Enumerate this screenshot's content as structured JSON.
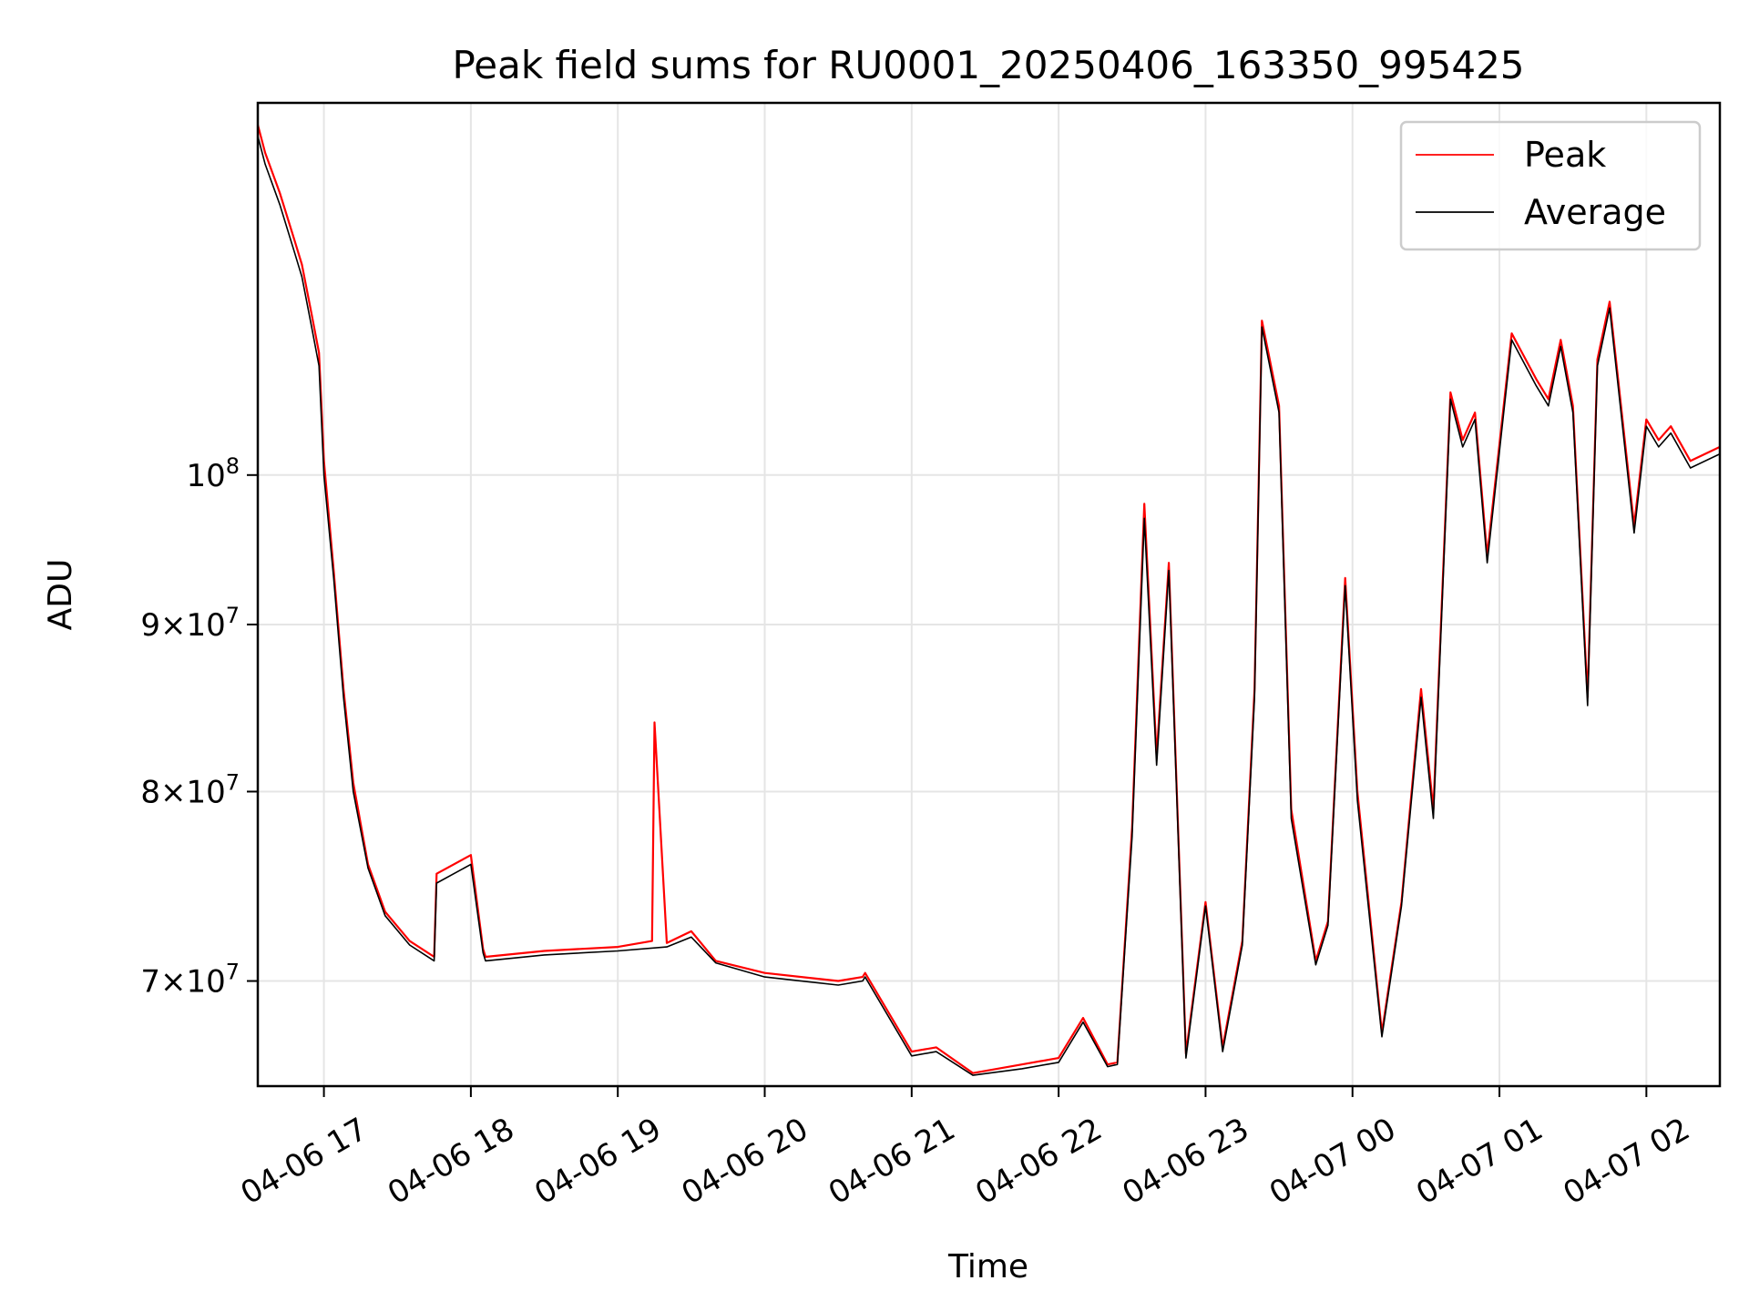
{
  "chart_data": {
    "type": "line",
    "title": "Peak field sums for RU0001_20250406_163350_995425",
    "xlabel": "Time",
    "ylabel": "ADU",
    "y_scale": "log",
    "xlim": [
      "2025-04-06 16:33",
      "2025-04-07 02:30"
    ],
    "ylim": [
      65000000,
      130000000
    ],
    "grid": true,
    "legend_position": "top-right",
    "x_ticks": [
      "04-06 17",
      "04-06 18",
      "04-06 19",
      "04-06 20",
      "04-06 21",
      "04-06 22",
      "04-06 23",
      "04-07 00",
      "04-07 01",
      "04-07 02"
    ],
    "x_tick_times": [
      "2025-04-06 17:00",
      "2025-04-06 18:00",
      "2025-04-06 19:00",
      "2025-04-06 20:00",
      "2025-04-06 21:00",
      "2025-04-06 22:00",
      "2025-04-06 23:00",
      "2025-04-07 00:00",
      "2025-04-07 01:00",
      "2025-04-07 02:00"
    ],
    "y_ticks": [
      {
        "value": 70000000,
        "mantissa": "7",
        "exponent": "7"
      },
      {
        "value": 80000000,
        "mantissa": "8",
        "exponent": "7"
      },
      {
        "value": 90000000,
        "mantissa": "9",
        "exponent": "7"
      },
      {
        "value": 100000000,
        "mantissa": "",
        "exponent": "8"
      }
    ],
    "series": [
      {
        "name": "Peak",
        "color": "#ff0000",
        "x": [
          "2025-04-06 16:33",
          "2025-04-06 16:36",
          "2025-04-06 16:42",
          "2025-04-06 16:48",
          "2025-04-06 16:51",
          "2025-04-06 16:55",
          "2025-04-06 16:58",
          "2025-04-06 17:00",
          "2025-04-06 17:04",
          "2025-04-06 17:08",
          "2025-04-06 17:12",
          "2025-04-06 17:18",
          "2025-04-06 17:25",
          "2025-04-06 17:35",
          "2025-04-06 17:45",
          "2025-04-06 17:46",
          "2025-04-06 18:00",
          "2025-04-06 18:05",
          "2025-04-06 18:06",
          "2025-04-06 18:30",
          "2025-04-06 19:00",
          "2025-04-06 19:14",
          "2025-04-06 19:15",
          "2025-04-06 19:20",
          "2025-04-06 19:30",
          "2025-04-06 19:40",
          "2025-04-06 20:00",
          "2025-04-06 20:30",
          "2025-04-06 20:40",
          "2025-04-06 20:41",
          "2025-04-06 21:00",
          "2025-04-06 21:10",
          "2025-04-06 21:25",
          "2025-04-06 21:45",
          "2025-04-06 22:00",
          "2025-04-06 22:10",
          "2025-04-06 22:20",
          "2025-04-06 22:24",
          "2025-04-06 22:30",
          "2025-04-06 22:35",
          "2025-04-06 22:40",
          "2025-04-06 22:45",
          "2025-04-06 22:52",
          "2025-04-06 23:00",
          "2025-04-06 23:07",
          "2025-04-06 23:15",
          "2025-04-06 23:20",
          "2025-04-06 23:23",
          "2025-04-06 23:30",
          "2025-04-06 23:35",
          "2025-04-06 23:45",
          "2025-04-06 23:50",
          "2025-04-06 23:57",
          "2025-04-07 00:02",
          "2025-04-07 00:12",
          "2025-04-07 00:20",
          "2025-04-07 00:28",
          "2025-04-07 00:33",
          "2025-04-07 00:40",
          "2025-04-07 00:45",
          "2025-04-07 00:50",
          "2025-04-07 00:55",
          "2025-04-07 01:05",
          "2025-04-07 01:15",
          "2025-04-07 01:20",
          "2025-04-07 01:25",
          "2025-04-07 01:30",
          "2025-04-07 01:36",
          "2025-04-07 01:40",
          "2025-04-07 01:45",
          "2025-04-07 01:55",
          "2025-04-07 02:00",
          "2025-04-07 02:05",
          "2025-04-07 02:10",
          "2025-04-07 02:18",
          "2025-04-07 02:30"
        ],
        "values": [
          128000000,
          125500000,
          122000000,
          118000000,
          116000000,
          112000000,
          109000000,
          101000000,
          93500000,
          86000000,
          80500000,
          76000000,
          73500000,
          72000000,
          71200000,
          75500000,
          76500000,
          71600000,
          71200000,
          71500000,
          71700000,
          72000000,
          84000000,
          71900000,
          72500000,
          71000000,
          70400000,
          70000000,
          70200000,
          70400000,
          66600000,
          66800000,
          65600000,
          66000000,
          66300000,
          68200000,
          66000000,
          66100000,
          78000000,
          98000000,
          82000000,
          94000000,
          66500000,
          74000000,
          66800000,
          72000000,
          86000000,
          111500000,
          105000000,
          79000000,
          71000000,
          73000000,
          93000000,
          80000000,
          67500000,
          74000000,
          86000000,
          79000000,
          106000000,
          102500000,
          104500000,
          94500000,
          110500000,
          107000000,
          105500000,
          110000000,
          105000000,
          85500000,
          108500000,
          113000000,
          96500000,
          104000000,
          102500000,
          103500000,
          101000000,
          102000000
        ]
      },
      {
        "name": "Average",
        "color": "#000000",
        "x": [
          "2025-04-06 16:33",
          "2025-04-06 16:36",
          "2025-04-06 16:42",
          "2025-04-06 16:48",
          "2025-04-06 16:51",
          "2025-04-06 16:55",
          "2025-04-06 16:58",
          "2025-04-06 17:00",
          "2025-04-06 17:04",
          "2025-04-06 17:08",
          "2025-04-06 17:12",
          "2025-04-06 17:18",
          "2025-04-06 17:25",
          "2025-04-06 17:35",
          "2025-04-06 17:45",
          "2025-04-06 17:46",
          "2025-04-06 18:00",
          "2025-04-06 18:05",
          "2025-04-06 18:06",
          "2025-04-06 18:30",
          "2025-04-06 19:00",
          "2025-04-06 19:20",
          "2025-04-06 19:30",
          "2025-04-06 19:40",
          "2025-04-06 20:00",
          "2025-04-06 20:30",
          "2025-04-06 20:40",
          "2025-04-06 20:41",
          "2025-04-06 21:00",
          "2025-04-06 21:10",
          "2025-04-06 21:25",
          "2025-04-06 21:45",
          "2025-04-06 22:00",
          "2025-04-06 22:10",
          "2025-04-06 22:20",
          "2025-04-06 22:24",
          "2025-04-06 22:30",
          "2025-04-06 22:35",
          "2025-04-06 22:40",
          "2025-04-06 22:45",
          "2025-04-06 22:52",
          "2025-04-06 23:00",
          "2025-04-06 23:07",
          "2025-04-06 23:15",
          "2025-04-06 23:20",
          "2025-04-06 23:23",
          "2025-04-06 23:30",
          "2025-04-06 23:35",
          "2025-04-06 23:45",
          "2025-04-06 23:50",
          "2025-04-06 23:57",
          "2025-04-07 00:02",
          "2025-04-07 00:12",
          "2025-04-07 00:20",
          "2025-04-07 00:28",
          "2025-04-07 00:33",
          "2025-04-07 00:40",
          "2025-04-07 00:45",
          "2025-04-07 00:50",
          "2025-04-07 00:55",
          "2025-04-07 01:05",
          "2025-04-07 01:15",
          "2025-04-07 01:20",
          "2025-04-07 01:25",
          "2025-04-07 01:30",
          "2025-04-07 01:36",
          "2025-04-07 01:40",
          "2025-04-07 01:45",
          "2025-04-07 01:55",
          "2025-04-07 02:00",
          "2025-04-07 02:05",
          "2025-04-07 02:10",
          "2025-04-07 02:18",
          "2025-04-07 02:30"
        ],
        "values": [
          127000000,
          124500000,
          121000000,
          117000000,
          115000000,
          111000000,
          108000000,
          100000000,
          93000000,
          85500000,
          80000000,
          75800000,
          73300000,
          71800000,
          71000000,
          75000000,
          76000000,
          71400000,
          71000000,
          71300000,
          71500000,
          71700000,
          72200000,
          70900000,
          70200000,
          69800000,
          70000000,
          70200000,
          66400000,
          66600000,
          65500000,
          65800000,
          66100000,
          68000000,
          65900000,
          66000000,
          77500000,
          97000000,
          81500000,
          93500000,
          66300000,
          73800000,
          66600000,
          71800000,
          85500000,
          111000000,
          104500000,
          78500000,
          70800000,
          72800000,
          92500000,
          79500000,
          67300000,
          73800000,
          85500000,
          78500000,
          105500000,
          102000000,
          104000000,
          94000000,
          110000000,
          106500000,
          105000000,
          109500000,
          104500000,
          85000000,
          108000000,
          112500000,
          96000000,
          103500000,
          102000000,
          103000000,
          100500000,
          101500000
        ]
      }
    ]
  }
}
